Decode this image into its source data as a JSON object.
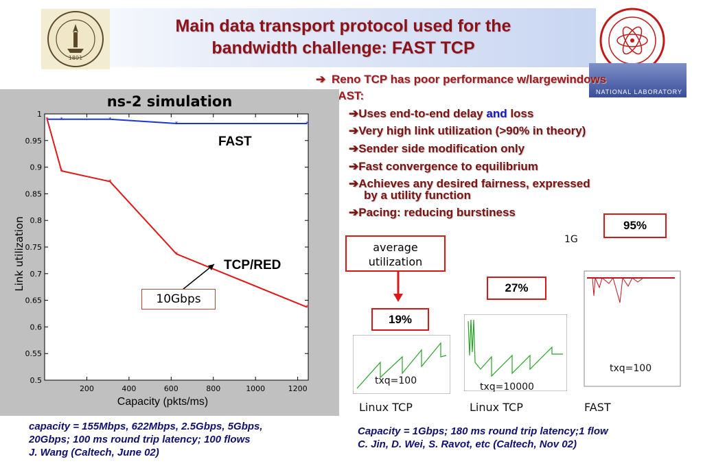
{
  "title_line1": "Main data transport protocol used for the",
  "title_line2": "bandwidth challenge: FAST TCP",
  "logos": {
    "caltech_year": "1891",
    "lanl_text": "NATIONAL LABORATORY"
  },
  "bullets": {
    "b1": "Reno TCP has poor performance w/largewindows",
    "b2": "FAST:",
    "s1_a": "Uses end-to-end delay ",
    "s1_and": "and",
    "s1_b": " loss",
    "s2": "Very high link utilization (>90% in theory)",
    "s3": "Sender side modification only",
    "s4": "Fast convergence to equilibrium",
    "s5a": "Achieves any desired fairness, expressed",
    "s5b": "by a utility function",
    "s6": "Pacing: reducing burstiness"
  },
  "chart_panel": {
    "title": "ns-2 simulation",
    "box_label": "10Gbps",
    "caption1": "capacity = 155Mbps, 622Mbps, 2.5Gbps, 5Gbps,",
    "caption2": "20Gbps; 100 ms round trip latency; 100 flows",
    "caption3": "J. Wang (Caltech, June 02)"
  },
  "chart_data": {
    "type": "line",
    "xlabel": "Capacity (pkts/ms)",
    "ylabel": "Link utilization",
    "xlim": [
      0,
      1250
    ],
    "ylim": [
      0.5,
      1.0
    ],
    "x_ticks": [
      "200",
      "400",
      "600",
      "800",
      "1000",
      "1200"
    ],
    "y_ticks": [
      "0.5",
      "0.55",
      "0.6",
      "0.65",
      "0.7",
      "0.75",
      "0.8",
      "0.85",
      "0.9",
      "0.95",
      "1"
    ],
    "series": [
      {
        "name": "FAST",
        "color": "#1a35d8",
        "x": [
          12,
          80,
          310,
          625,
          1245
        ],
        "y": [
          0.99,
          0.99,
          0.99,
          0.982,
          0.982
        ]
      },
      {
        "name": "TCP/RED",
        "color": "#e01818",
        "x": [
          12,
          80,
          310,
          625,
          1245
        ],
        "y": [
          0.99,
          0.893,
          0.873,
          0.737,
          0.637
        ]
      }
    ],
    "annotations": [
      "FAST",
      "TCP/RED"
    ]
  },
  "right_panel": {
    "avg_label1": "average",
    "avg_label2": "utilization",
    "p1": "19%",
    "p2": "27%",
    "p3": "95%",
    "g1": "1G",
    "txq1": "txq=100",
    "txq2": "txq=10000",
    "txq3": "txq=100",
    "name1": "Linux TCP",
    "name2": "Linux TCP",
    "name3": "FAST",
    "caption1": "Capacity = 1Gbps; 180 ms round trip latency;1 flow",
    "caption2": "C. Jin, D. Wei, S. Ravot, etc (Caltech, Nov 02)"
  },
  "colors": {
    "title": "#8b1218",
    "bullet": "#9d1a1e",
    "caption": "#101070",
    "fast_line": "#1a35d8",
    "tcp_line": "#e01818"
  }
}
